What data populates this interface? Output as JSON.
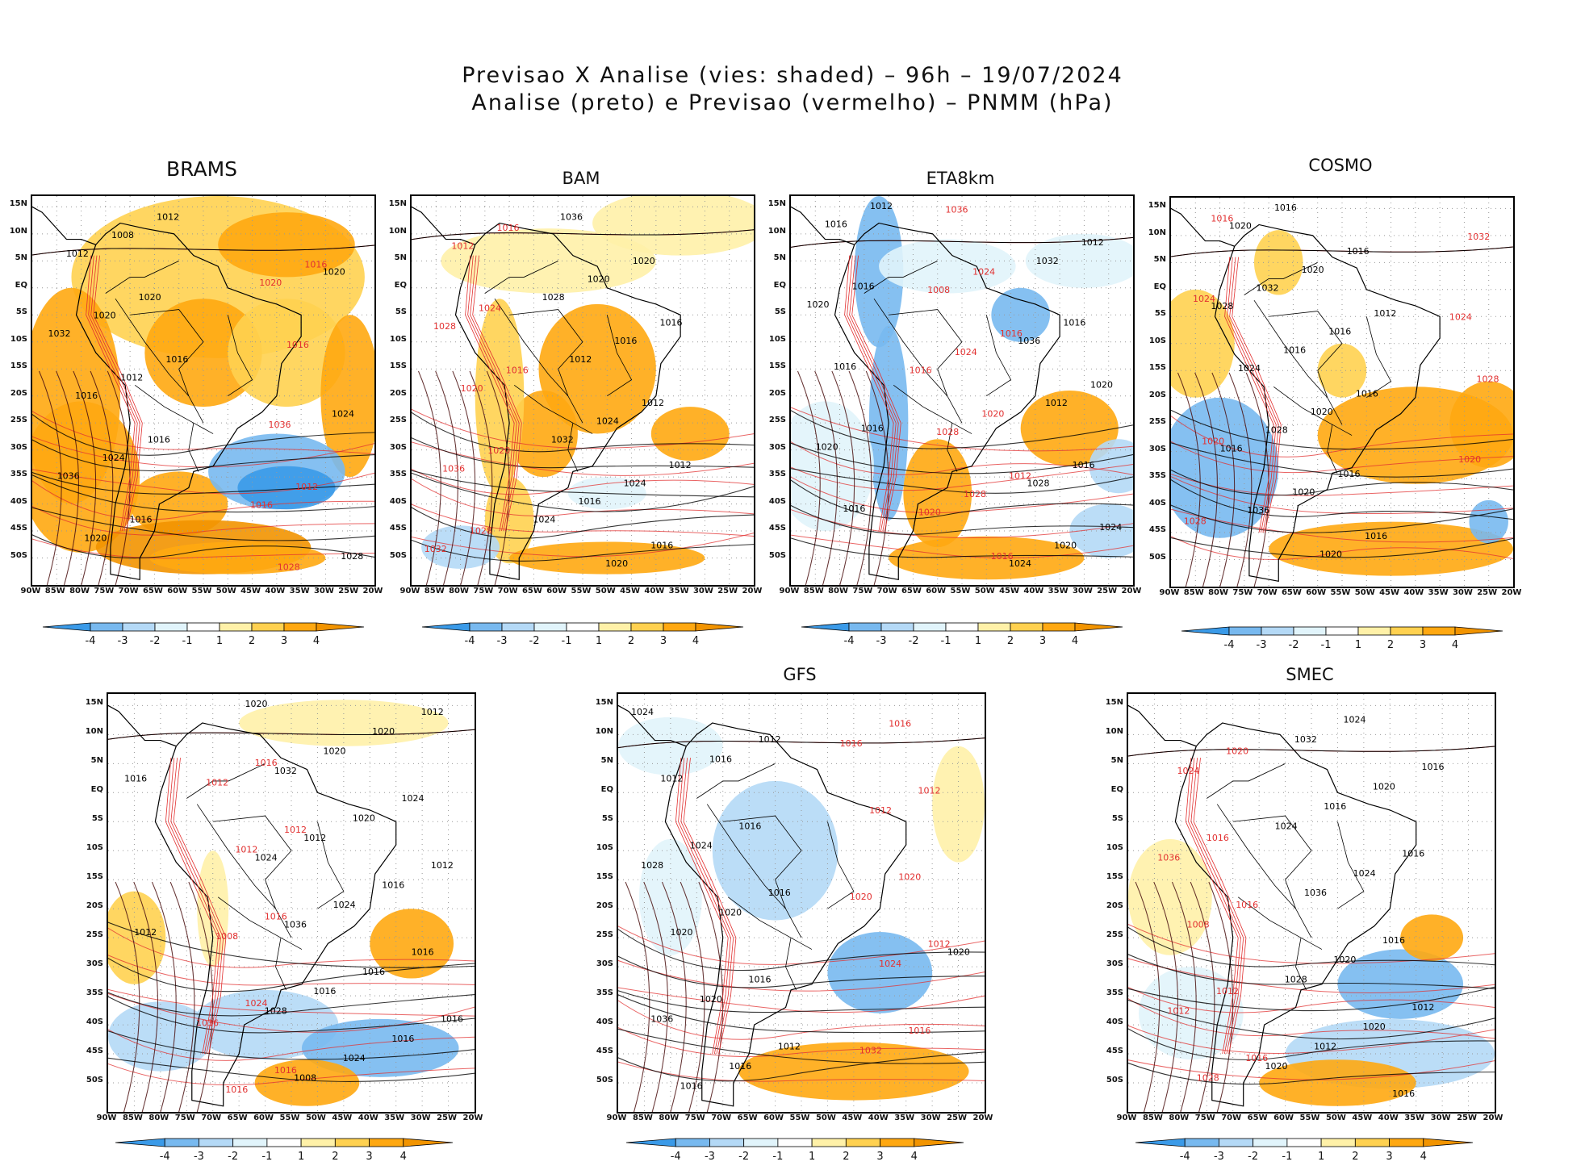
{
  "header": {
    "line1": "Previsao X Analise (vies: shaded) – 96h – 19/07/2024",
    "line2": "Analise (preto) e Previsao (vermelho) – PNMM (hPa)"
  },
  "axes": {
    "lat_labels": [
      "15N",
      "10N",
      "5N",
      "EQ",
      "5S",
      "10S",
      "15S",
      "20S",
      "25S",
      "30S",
      "35S",
      "40S",
      "45S",
      "50S"
    ],
    "lon_labels": [
      "90W",
      "85W",
      "80W",
      "75W",
      "70W",
      "65W",
      "60W",
      "55W",
      "50W",
      "45W",
      "40W",
      "35W",
      "30W",
      "25W",
      "20W"
    ]
  },
  "colorbar": {
    "labels": [
      "-4",
      "-3",
      "-2",
      "-1",
      "1",
      "2",
      "3",
      "4"
    ],
    "colors": [
      "#3a9ae8",
      "#78b9ef",
      "#b4d9f6",
      "#e1f4fb",
      "#ffffff",
      "#fff1a8",
      "#ffd150",
      "#ffa811",
      "#f29400"
    ]
  },
  "contour_colors": {
    "analysis": "#000000",
    "forecast": "#e23030"
  },
  "panels": [
    {
      "title": "BRAMS",
      "black_labels": [
        "1016",
        "1012",
        "1016",
        "1020",
        "1016",
        "1012",
        "1008",
        "1024",
        "1020",
        "1020",
        "1016",
        "1012",
        "1036",
        "1032",
        "1028",
        "1024",
        "1020"
      ],
      "red_labels": [
        "1016",
        "1012",
        "1016",
        "1028",
        "1036",
        "1020",
        "1016"
      ],
      "blobs": [
        {
          "lon": -52,
          "lat": 2,
          "rx": 30,
          "ry": 15,
          "c": 6
        },
        {
          "lon": -38,
          "lat": 8,
          "rx": 14,
          "ry": 6,
          "c": 7
        },
        {
          "lon": -82,
          "lat": -20,
          "rx": 10,
          "ry": 20,
          "c": 7
        },
        {
          "lon": -55,
          "lat": -12,
          "rx": 12,
          "ry": 10,
          "c": 7
        },
        {
          "lon": -38,
          "lat": -12,
          "rx": 12,
          "ry": 10,
          "c": 6
        },
        {
          "lon": -25,
          "lat": -20,
          "rx": 6,
          "ry": 15,
          "c": 7
        },
        {
          "lon": -80,
          "lat": -35,
          "rx": 12,
          "ry": 14,
          "c": 7
        },
        {
          "lon": -60,
          "lat": -40,
          "rx": 10,
          "ry": 6,
          "c": 7
        },
        {
          "lon": -40,
          "lat": -34,
          "rx": 14,
          "ry": 7,
          "c": 1
        },
        {
          "lon": -38,
          "lat": -37,
          "rx": 10,
          "ry": 4,
          "c": 0
        },
        {
          "lon": -55,
          "lat": -48,
          "rx": 22,
          "ry": 5,
          "c": 8
        },
        {
          "lon": -48,
          "lat": -50,
          "rx": 18,
          "ry": 3,
          "c": 7
        }
      ]
    },
    {
      "title": "BAM",
      "black_labels": [
        "1012",
        "1016",
        "1016",
        "1012",
        "1020",
        "1024",
        "1016",
        "1020",
        "1024",
        "1020",
        "1016",
        "1012",
        "1036",
        "1032",
        "1028",
        "1024"
      ],
      "red_labels": [
        "1016",
        "1016",
        "1020",
        "1024",
        "1028",
        "1020",
        "1012",
        "1036",
        "1028",
        "1032"
      ],
      "blobs": [
        {
          "lon": -62,
          "lat": 5,
          "rx": 22,
          "ry": 6,
          "c": 5
        },
        {
          "lon": -35,
          "lat": 12,
          "rx": 18,
          "ry": 6,
          "c": 5
        },
        {
          "lon": -52,
          "lat": -15,
          "rx": 12,
          "ry": 12,
          "c": 7
        },
        {
          "lon": -63,
          "lat": -27,
          "rx": 7,
          "ry": 8,
          "c": 7
        },
        {
          "lon": -33,
          "lat": -27,
          "rx": 8,
          "ry": 5,
          "c": 7
        },
        {
          "lon": -72,
          "lat": -20,
          "rx": 5,
          "ry": 18,
          "c": 6
        },
        {
          "lon": -70,
          "lat": -43,
          "rx": 5,
          "ry": 8,
          "c": 6
        },
        {
          "lon": -50,
          "lat": -50,
          "rx": 20,
          "ry": 3,
          "c": 7
        },
        {
          "lon": -80,
          "lat": -48,
          "rx": 8,
          "ry": 4,
          "c": 2
        },
        {
          "lon": -50,
          "lat": -38,
          "rx": 8,
          "ry": 3,
          "c": 3
        }
      ]
    },
    {
      "title": "ETA8km",
      "black_labels": [
        "1012",
        "1016",
        "1016",
        "1016",
        "1016",
        "1016",
        "1020",
        "1020",
        "1024",
        "1020",
        "1012",
        "1016",
        "1016",
        "1020",
        "1012",
        "1032",
        "1028",
        "1036",
        "1024"
      ],
      "red_labels": [
        "1012",
        "1016",
        "1016",
        "1020",
        "1024",
        "1028",
        "1024",
        "1036",
        "1028",
        "1008",
        "1020",
        "1016"
      ],
      "blobs": [
        {
          "lon": -72,
          "lat": 3,
          "rx": 5,
          "ry": 14,
          "c": 1
        },
        {
          "lon": -58,
          "lat": 4,
          "rx": 14,
          "ry": 5,
          "c": 3
        },
        {
          "lon": -30,
          "lat": 5,
          "rx": 12,
          "ry": 5,
          "c": 3
        },
        {
          "lon": -70,
          "lat": -25,
          "rx": 4,
          "ry": 18,
          "c": 1
        },
        {
          "lon": -43,
          "lat": -5,
          "rx": 6,
          "ry": 5,
          "c": 1
        },
        {
          "lon": -33,
          "lat": -26,
          "rx": 10,
          "ry": 7,
          "c": 7
        },
        {
          "lon": -60,
          "lat": -38,
          "rx": 7,
          "ry": 10,
          "c": 7
        },
        {
          "lon": -50,
          "lat": -50,
          "rx": 20,
          "ry": 4,
          "c": 7
        },
        {
          "lon": -83,
          "lat": -33,
          "rx": 10,
          "ry": 12,
          "c": 3
        },
        {
          "lon": -23,
          "lat": -33,
          "rx": 6,
          "ry": 5,
          "c": 2
        },
        {
          "lon": -25,
          "lat": -45,
          "rx": 8,
          "ry": 5,
          "c": 2
        }
      ]
    },
    {
      "title": "COSMO",
      "black_labels": [
        "1012",
        "1016",
        "1016",
        "1016",
        "1016",
        "1016",
        "1020",
        "1020",
        "1020",
        "1020",
        "1016",
        "1016",
        "1028",
        "1032",
        "1036",
        "1024",
        "1020",
        "1016",
        "1028"
      ],
      "red_labels": [
        "1016",
        "1020",
        "1024",
        "1028",
        "1028",
        "1032",
        "1020",
        "1024"
      ],
      "blobs": [
        {
          "lon": -85,
          "lat": -10,
          "rx": 8,
          "ry": 10,
          "c": 6
        },
        {
          "lon": -68,
          "lat": 5,
          "rx": 5,
          "ry": 6,
          "c": 6
        },
        {
          "lon": -40,
          "lat": -27,
          "rx": 20,
          "ry": 9,
          "c": 7
        },
        {
          "lon": -25,
          "lat": -25,
          "rx": 8,
          "ry": 8,
          "c": 7
        },
        {
          "lon": -80,
          "lat": -33,
          "rx": 12,
          "ry": 13,
          "c": 1
        },
        {
          "lon": -45,
          "lat": -48,
          "rx": 25,
          "ry": 5,
          "c": 7
        },
        {
          "lon": -55,
          "lat": -15,
          "rx": 5,
          "ry": 5,
          "c": 6
        },
        {
          "lon": -25,
          "lat": -43,
          "rx": 4,
          "ry": 4,
          "c": 1
        }
      ]
    },
    {
      "title": "",
      "black_labels": [
        "1012",
        "1016",
        "1016",
        "1012",
        "1012",
        "1016",
        "1024",
        "1016",
        "1016",
        "1020",
        "1016",
        "1020",
        "1024",
        "1024",
        "1020",
        "1016",
        "1012",
        "1008",
        "1036",
        "1032",
        "1028",
        "1024",
        "1020"
      ],
      "red_labels": [
        "1012",
        "1016",
        "1016",
        "1016",
        "1024",
        "1012",
        "1016",
        "1008",
        "1012",
        "1036"
      ],
      "blobs": [
        {
          "lon": -45,
          "lat": 12,
          "rx": 20,
          "ry": 4,
          "c": 5
        },
        {
          "lon": -85,
          "lat": -25,
          "rx": 6,
          "ry": 8,
          "c": 6
        },
        {
          "lon": -32,
          "lat": -26,
          "rx": 8,
          "ry": 6,
          "c": 7
        },
        {
          "lon": -60,
          "lat": -40,
          "rx": 14,
          "ry": 6,
          "c": 2
        },
        {
          "lon": -38,
          "lat": -44,
          "rx": 15,
          "ry": 5,
          "c": 1
        },
        {
          "lon": -80,
          "lat": -42,
          "rx": 10,
          "ry": 6,
          "c": 2
        },
        {
          "lon": -52,
          "lat": -50,
          "rx": 10,
          "ry": 4,
          "c": 7
        },
        {
          "lon": -70,
          "lat": -20,
          "rx": 3,
          "ry": 10,
          "c": 5
        }
      ]
    },
    {
      "title": "GFS",
      "black_labels": [
        "1012",
        "1016",
        "1012",
        "1016",
        "1016",
        "1016",
        "1020",
        "1016",
        "1020",
        "1024",
        "1016",
        "1020",
        "1012",
        "1036",
        "1028",
        "1024",
        "1020"
      ],
      "red_labels": [
        "1012",
        "1012",
        "1016",
        "1020",
        "1016",
        "1024",
        "1012",
        "1032",
        "1020",
        "1016"
      ],
      "blobs": [
        {
          "lon": -60,
          "lat": -10,
          "rx": 12,
          "ry": 12,
          "c": 2
        },
        {
          "lon": -80,
          "lat": 8,
          "rx": 10,
          "ry": 5,
          "c": 3
        },
        {
          "lon": -40,
          "lat": -31,
          "rx": 10,
          "ry": 7,
          "c": 1
        },
        {
          "lon": -25,
          "lat": -2,
          "rx": 5,
          "ry": 10,
          "c": 5
        },
        {
          "lon": -45,
          "lat": -48,
          "rx": 22,
          "ry": 5,
          "c": 7
        },
        {
          "lon": -80,
          "lat": -18,
          "rx": 6,
          "ry": 10,
          "c": 3
        }
      ]
    },
    {
      "title": "SMEC",
      "black_labels": [
        "1016",
        "1012",
        "1016",
        "1016",
        "1016",
        "1020",
        "1020",
        "1024",
        "1024",
        "1020",
        "1016",
        "1012",
        "1036",
        "1032",
        "1028",
        "1024",
        "1020"
      ],
      "red_labels": [
        "1016",
        "1016",
        "1020",
        "1012",
        "1016",
        "1028",
        "1008",
        "1024",
        "1012",
        "1036"
      ],
      "blobs": [
        {
          "lon": -82,
          "lat": -18,
          "rx": 8,
          "ry": 10,
          "c": 5
        },
        {
          "lon": -38,
          "lat": -33,
          "rx": 12,
          "ry": 6,
          "c": 1
        },
        {
          "lon": -32,
          "lat": -25,
          "rx": 6,
          "ry": 4,
          "c": 7
        },
        {
          "lon": -40,
          "lat": -45,
          "rx": 20,
          "ry": 6,
          "c": 2
        },
        {
          "lon": -50,
          "lat": -50,
          "rx": 15,
          "ry": 4,
          "c": 7
        },
        {
          "lon": -78,
          "lat": -38,
          "rx": 10,
          "ry": 8,
          "c": 3
        }
      ]
    }
  ]
}
